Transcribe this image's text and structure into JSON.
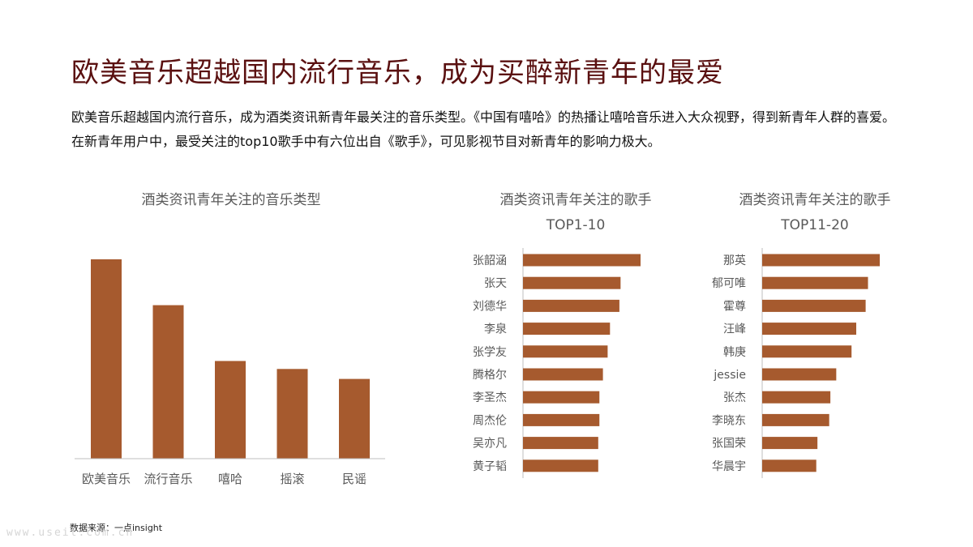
{
  "heading": "欧美音乐超越国内流行音乐，成为买醉新青年的最爱",
  "description": "欧美音乐超越国内流行音乐，成为酒类资讯新青年最关注的音乐类型。《中国有嘻哈》的热播让嘻哈音乐进入大众视野，得到新青年人群的喜爱。在新青年用户中，最受关注的top10歌手中有六位出自《歌手》，可见影视节目对新青年的影响力极大。",
  "source": "数据来源：一点insight",
  "watermark": "www.useit.com.cn",
  "colors": {
    "bar": "#A65A2E",
    "title": "#5A1010",
    "axis": "#BFBFBF",
    "label": "#595959"
  },
  "chart_data": [
    {
      "type": "bar",
      "title": "酒类资讯青年关注的音乐类型",
      "categories": [
        "欧美音乐",
        "流行音乐",
        "嘻哈",
        "摇滚",
        "民谣"
      ],
      "values": [
        100,
        77,
        49,
        45,
        40
      ],
      "ylim": [
        0,
        100
      ],
      "grid": false,
      "legend": "none"
    },
    {
      "type": "bar",
      "orientation": "horizontal",
      "title": "酒类资讯青年关注的歌手",
      "subtitle": "TOP1-10",
      "categories": [
        "张韶涵",
        "张天",
        "刘德华",
        "李泉",
        "张学友",
        "腾格尔",
        "李圣杰",
        "周杰伦",
        "吴亦凡",
        "黄子韬"
      ],
      "values": [
        100,
        83,
        82,
        74,
        72,
        68,
        65,
        65,
        64,
        64
      ],
      "xlim": [
        0,
        100
      ],
      "grid": false,
      "legend": "none"
    },
    {
      "type": "bar",
      "orientation": "horizontal",
      "title": "酒类资讯青年关注的歌手",
      "subtitle": "TOP11-20",
      "categories": [
        "那英",
        "郁可唯",
        "霍尊",
        "汪峰",
        "韩庚",
        "jessie",
        "张杰",
        "李晓东",
        "张国荣",
        "华晨宇"
      ],
      "values": [
        100,
        90,
        88,
        80,
        76,
        63,
        58,
        57,
        47,
        46
      ],
      "xlim": [
        0,
        100
      ],
      "grid": false,
      "legend": "none"
    }
  ]
}
